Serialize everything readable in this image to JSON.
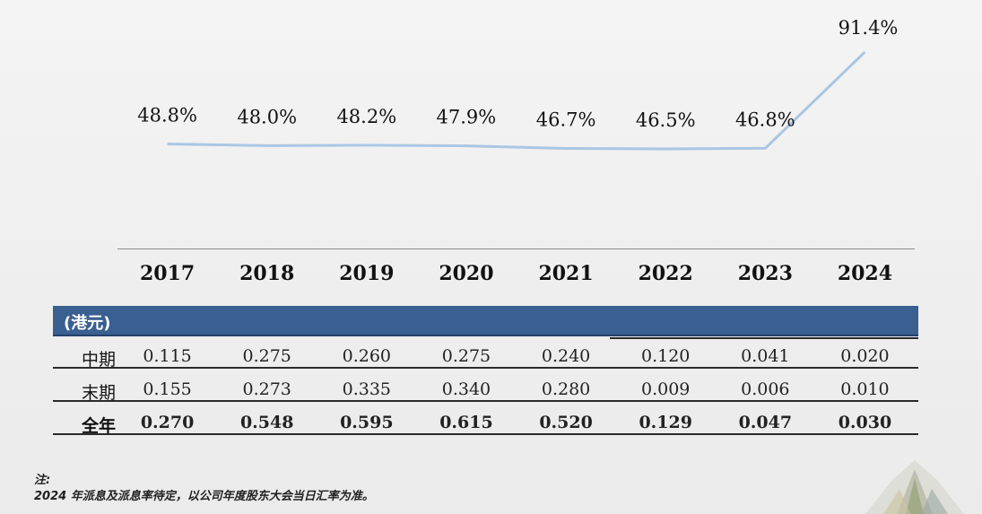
{
  "chart_data": {
    "type": "line",
    "categories": [
      "2017",
      "2018",
      "2019",
      "2020",
      "2021",
      "2022",
      "2023",
      "2024"
    ],
    "series": [
      {
        "values": [
          48.8,
          48.0,
          48.2,
          47.9,
          46.7,
          46.5,
          46.8,
          91.4
        ]
      }
    ],
    "value_labels": [
      "48.8%",
      "48.0%",
      "48.2%",
      "47.9%",
      "46.7%",
      "46.5%",
      "46.8%",
      "91.4%"
    ],
    "line_color": "#aac6e4"
  },
  "table": {
    "unit_label": "(港元)",
    "band_color": "#3a5f91",
    "rows": [
      {
        "label": "中期",
        "values": [
          "0.115",
          "0.275",
          "0.260",
          "0.275",
          "0.240",
          "0.120",
          "0.041",
          "0.020"
        ]
      },
      {
        "label": "末期",
        "values": [
          "0.155",
          "0.273",
          "0.335",
          "0.340",
          "0.280",
          "0.009",
          "0.006",
          "0.010"
        ]
      },
      {
        "label": "全年",
        "values": [
          "0.270",
          "0.548",
          "0.595",
          "0.615",
          "0.520",
          "0.129",
          "0.047",
          "0.030"
        ]
      }
    ]
  },
  "note": {
    "title": "注:",
    "text": "2024 年派息及派息率待定，以公司年度股东大会当日汇率为准。"
  }
}
